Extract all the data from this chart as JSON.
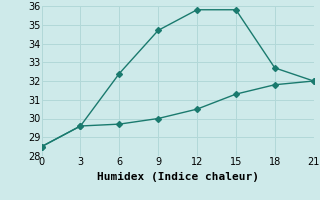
{
  "x": [
    0,
    3,
    6,
    9,
    12,
    15,
    18,
    21
  ],
  "line1": [
    28.5,
    29.6,
    32.4,
    34.7,
    35.8,
    35.8,
    32.7,
    32.0
  ],
  "line2": [
    28.5,
    29.6,
    29.7,
    30.0,
    30.5,
    31.3,
    31.8,
    32.0
  ],
  "line_color": "#1a7a6e",
  "xlabel": "Humidex (Indice chaleur)",
  "ylim": [
    28,
    36
  ],
  "xlim": [
    0,
    21
  ],
  "yticks": [
    28,
    29,
    30,
    31,
    32,
    33,
    34,
    35,
    36
  ],
  "xticks": [
    0,
    3,
    6,
    9,
    12,
    15,
    18,
    21
  ],
  "bg_color": "#ceeaea",
  "grid_color": "#b2d8d8",
  "marker": "D",
  "markersize": 3,
  "linewidth": 1.0,
  "xlabel_fontsize": 8,
  "tick_fontsize": 7
}
